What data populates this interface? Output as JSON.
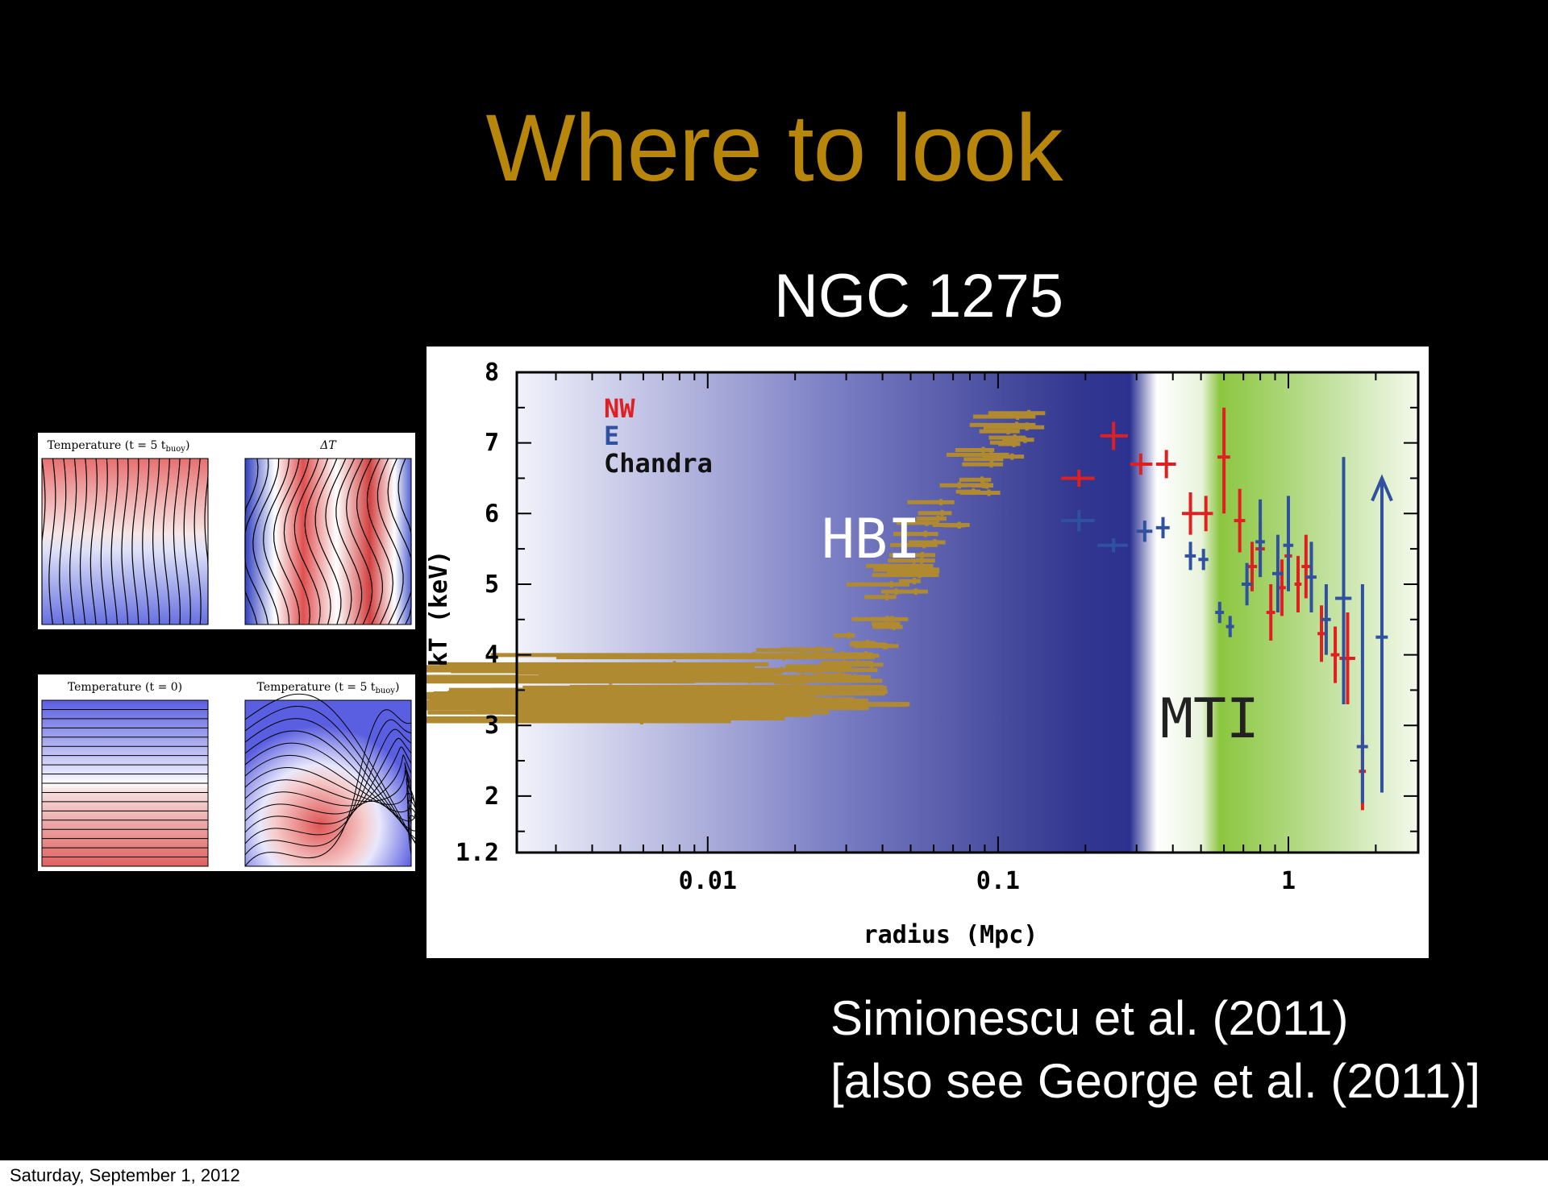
{
  "slide": {
    "title": "Where to look",
    "subtitle": "NGC 1275",
    "citation_line1": "Simionescu et al. (2011)",
    "citation_line2": "[also see George et al. (2011)]",
    "footer_date": "Saturday, September 1, 2012",
    "colors": {
      "title": "#b8860b",
      "background": "#000000",
      "text": "#ffffff"
    }
  },
  "simulations": {
    "top_left": "Temperature (t = 5 t",
    "top_left_sub": "buoy",
    "top_right": "ΔT",
    "bottom_left": "Temperature (t = 0)",
    "bottom_right": "Temperature (t = 5 t",
    "bottom_right_sub": "buoy"
  },
  "chart_data": {
    "type": "scatter",
    "xlabel": "radius (Mpc)",
    "ylabel": "kT (keV)",
    "x_scale": "log",
    "xlim": [
      0.0022,
      2.8
    ],
    "ylim": [
      1.2,
      8
    ],
    "x_ticks": [
      0.01,
      0.1,
      1
    ],
    "x_tick_labels": [
      "0.01",
      "0.1",
      "1"
    ],
    "y_ticks": [
      1.2,
      2,
      3,
      4,
      5,
      6,
      7,
      8
    ],
    "y_tick_labels": [
      "1.2",
      "2",
      "3",
      "4",
      "5",
      "6",
      "7",
      "8"
    ],
    "legend": [
      "NW",
      "E",
      "Chandra"
    ],
    "legend_position": "top-left",
    "region_labels": {
      "hbi": "HBI",
      "mti": "MTI"
    },
    "colors": {
      "NW": "#e02020",
      "E": "#3050a0",
      "Chandra": "#b08a30",
      "hbi_region": "#2e338a",
      "mti_region": "#8cc640"
    },
    "series": [
      {
        "name": "NW",
        "points": [
          {
            "x": 0.19,
            "y": 6.5,
            "xlo": 0.165,
            "xhi": 0.215,
            "ylo": 6.38,
            "yhi": 6.62
          },
          {
            "x": 0.25,
            "y": 7.1,
            "xlo": 0.225,
            "xhi": 0.28,
            "ylo": 6.9,
            "yhi": 7.3
          },
          {
            "x": 0.31,
            "y": 6.7,
            "xlo": 0.285,
            "xhi": 0.34,
            "ylo": 6.55,
            "yhi": 6.85
          },
          {
            "x": 0.38,
            "y": 6.7,
            "xlo": 0.35,
            "xhi": 0.41,
            "ylo": 6.5,
            "yhi": 6.9
          },
          {
            "x": 0.46,
            "y": 6.0,
            "xlo": 0.43,
            "xhi": 0.49,
            "ylo": 5.7,
            "yhi": 6.3
          },
          {
            "x": 0.52,
            "y": 6.0,
            "xlo": 0.49,
            "xhi": 0.55,
            "ylo": 5.75,
            "yhi": 6.25
          },
          {
            "x": 0.6,
            "y": 6.8,
            "xlo": 0.57,
            "xhi": 0.63,
            "ylo": 6.0,
            "yhi": 7.5
          },
          {
            "x": 0.68,
            "y": 5.9,
            "xlo": 0.65,
            "xhi": 0.71,
            "ylo": 5.45,
            "yhi": 6.35
          },
          {
            "x": 0.75,
            "y": 5.25,
            "xlo": 0.72,
            "xhi": 0.78,
            "ylo": 4.9,
            "yhi": 5.6
          },
          {
            "x": 0.8,
            "y": 5.5,
            "xlo": 0.77,
            "xhi": 0.83,
            "ylo": 5.1,
            "yhi": 5.9
          },
          {
            "x": 0.87,
            "y": 4.6,
            "xlo": 0.84,
            "xhi": 0.9,
            "ylo": 4.2,
            "yhi": 5.0
          },
          {
            "x": 0.95,
            "y": 4.95,
            "xlo": 0.92,
            "xhi": 0.98,
            "ylo": 4.55,
            "yhi": 5.35
          },
          {
            "x": 1.0,
            "y": 5.4,
            "xlo": 0.97,
            "xhi": 1.03,
            "ylo": 5.0,
            "yhi": 5.8
          },
          {
            "x": 1.08,
            "y": 5.0,
            "xlo": 1.05,
            "xhi": 1.11,
            "ylo": 4.6,
            "yhi": 5.4
          },
          {
            "x": 1.15,
            "y": 5.25,
            "xlo": 1.11,
            "xhi": 1.19,
            "ylo": 4.8,
            "yhi": 5.7
          },
          {
            "x": 1.3,
            "y": 4.3,
            "xlo": 1.26,
            "xhi": 1.34,
            "ylo": 3.9,
            "yhi": 4.7
          },
          {
            "x": 1.45,
            "y": 4.0,
            "xlo": 1.4,
            "xhi": 1.5,
            "ylo": 3.6,
            "yhi": 4.4
          },
          {
            "x": 1.6,
            "y": 3.95,
            "xlo": 1.5,
            "xhi": 1.7,
            "ylo": 3.3,
            "yhi": 4.6
          },
          {
            "x": 1.8,
            "y": 2.35,
            "xlo": 1.75,
            "xhi": 1.85,
            "ylo": 1.8,
            "yhi": 2.85
          }
        ]
      },
      {
        "name": "E",
        "points": [
          {
            "x": 0.19,
            "y": 5.9,
            "xlo": 0.165,
            "xhi": 0.215,
            "ylo": 5.75,
            "yhi": 6.05
          },
          {
            "x": 0.25,
            "y": 5.55,
            "xlo": 0.22,
            "xhi": 0.28,
            "ylo": 5.45,
            "yhi": 5.65
          },
          {
            "x": 0.32,
            "y": 5.75,
            "xlo": 0.3,
            "xhi": 0.34,
            "ylo": 5.6,
            "yhi": 5.9
          },
          {
            "x": 0.37,
            "y": 5.8,
            "xlo": 0.35,
            "xhi": 0.39,
            "ylo": 5.65,
            "yhi": 5.95
          },
          {
            "x": 0.46,
            "y": 5.4,
            "xlo": 0.44,
            "xhi": 0.48,
            "ylo": 5.2,
            "yhi": 5.6
          },
          {
            "x": 0.51,
            "y": 5.35,
            "xlo": 0.49,
            "xhi": 0.53,
            "ylo": 5.2,
            "yhi": 5.5
          },
          {
            "x": 0.58,
            "y": 4.6,
            "xlo": 0.56,
            "xhi": 0.6,
            "ylo": 4.45,
            "yhi": 4.75
          },
          {
            "x": 0.63,
            "y": 4.4,
            "xlo": 0.61,
            "xhi": 0.65,
            "ylo": 4.25,
            "yhi": 4.55
          },
          {
            "x": 0.72,
            "y": 5.0,
            "xlo": 0.69,
            "xhi": 0.75,
            "ylo": 4.7,
            "yhi": 5.3
          },
          {
            "x": 0.8,
            "y": 5.6,
            "xlo": 0.77,
            "xhi": 0.83,
            "ylo": 5.1,
            "yhi": 6.2
          },
          {
            "x": 0.92,
            "y": 5.15,
            "xlo": 0.88,
            "xhi": 0.96,
            "ylo": 4.6,
            "yhi": 5.7
          },
          {
            "x": 1.0,
            "y": 5.55,
            "xlo": 0.96,
            "xhi": 1.04,
            "ylo": 4.9,
            "yhi": 6.25
          },
          {
            "x": 1.2,
            "y": 5.1,
            "xlo": 1.15,
            "xhi": 1.25,
            "ylo": 4.6,
            "yhi": 5.6
          },
          {
            "x": 1.35,
            "y": 4.5,
            "xlo": 1.3,
            "xhi": 1.4,
            "ylo": 4.0,
            "yhi": 5.0
          },
          {
            "x": 1.55,
            "y": 4.8,
            "xlo": 1.45,
            "xhi": 1.65,
            "ylo": 3.3,
            "yhi": 6.8
          },
          {
            "x": 1.8,
            "y": 2.7,
            "xlo": 1.72,
            "xhi": 1.88,
            "ylo": 1.9,
            "yhi": 5.0
          },
          {
            "x": 2.1,
            "y": 4.25,
            "xlo": 2.0,
            "xhi": 2.2,
            "ylo": 2.05,
            "yhi": 6.5,
            "arrow_up": true
          }
        ]
      },
      {
        "name": "Chandra",
        "band": [
          {
            "x": 0.0032,
            "y": 3.3
          },
          {
            "x": 0.0045,
            "y": 3.4
          },
          {
            "x": 0.007,
            "y": 3.5
          },
          {
            "x": 0.01,
            "y": 3.55
          },
          {
            "x": 0.015,
            "y": 3.6
          },
          {
            "x": 0.02,
            "y": 3.65
          },
          {
            "x": 0.025,
            "y": 3.75
          },
          {
            "x": 0.03,
            "y": 3.9
          },
          {
            "x": 0.035,
            "y": 4.1
          },
          {
            "x": 0.04,
            "y": 4.4
          },
          {
            "x": 0.045,
            "y": 4.75
          },
          {
            "x": 0.05,
            "y": 5.1
          },
          {
            "x": 0.055,
            "y": 5.4
          },
          {
            "x": 0.06,
            "y": 5.7
          },
          {
            "x": 0.07,
            "y": 6.0
          },
          {
            "x": 0.08,
            "y": 6.3
          },
          {
            "x": 0.09,
            "y": 6.55
          },
          {
            "x": 0.1,
            "y": 6.8
          },
          {
            "x": 0.12,
            "y": 7.05
          },
          {
            "x": 0.13,
            "y": 7.15
          }
        ],
        "spread": 0.42
      }
    ]
  }
}
